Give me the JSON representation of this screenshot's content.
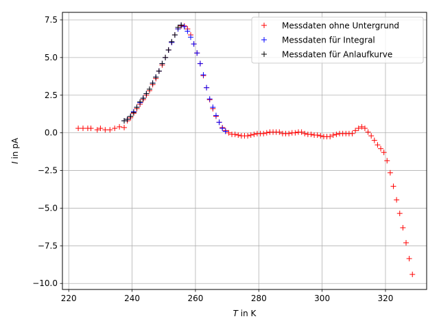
{
  "chart_data": {
    "type": "scatter",
    "title": "",
    "xlabel_var": "T",
    "xlabel_unit": " in K",
    "ylabel_var": "I",
    "ylabel_unit": " in pA",
    "xlim": [
      218,
      333
    ],
    "ylim": [
      -10.4,
      8.0
    ],
    "x_ticks": [
      220,
      240,
      260,
      280,
      300,
      320
    ],
    "y_ticks": [
      -10.0,
      -7.5,
      -5.0,
      -2.5,
      0.0,
      2.5,
      5.0,
      7.5
    ],
    "x_tick_labels": [
      "220",
      "240",
      "260",
      "280",
      "300",
      "320"
    ],
    "y_tick_labels": [
      "−10.0",
      "−7.5",
      "−5.0",
      "−2.5",
      "0.0",
      "2.5",
      "5.0",
      "7.5"
    ],
    "grid": true,
    "legend_position": "upper right",
    "marker": "+",
    "series": [
      {
        "name": "Messdaten ohne Untergrund",
        "color": "#ff0000",
        "x": [
          223,
          224.5,
          226,
          227,
          229,
          230,
          231.5,
          233,
          234.5,
          236,
          237.5,
          238.5,
          239.5,
          240.5,
          241.5,
          242.5,
          243.5,
          244.5,
          245.5,
          246.5,
          247.5,
          248.5,
          249.5,
          250.5,
          251.5,
          252.5,
          253.5,
          254.5,
          255.5,
          256.5,
          257.5,
          258.5,
          259.5,
          260.5,
          261.5,
          262.5,
          263.5,
          264.5,
          265.5,
          266.5,
          267.5,
          268.5,
          269.5,
          270.5,
          271.5,
          272.5,
          273.5,
          274.5,
          275.5,
          276.5,
          277.5,
          278.5,
          279.5,
          280.5,
          281.5,
          282.5,
          283.5,
          284.5,
          285.5,
          286.5,
          287.5,
          288.5,
          289.5,
          290.5,
          291.5,
          292.5,
          293.5,
          294.5,
          295.5,
          296.5,
          297.5,
          298.5,
          299.5,
          300.5,
          301.5,
          302.5,
          303.5,
          304.5,
          305.5,
          306.5,
          307.5,
          308.5,
          309.5,
          310.5,
          311.5,
          312.5,
          313.5,
          314.5,
          315.5,
          316.5,
          317.5,
          318.5,
          319.5,
          320.5,
          321.5,
          322.5,
          323.5,
          324.5,
          325.5,
          326.5,
          327.5,
          328.5
        ],
        "y": [
          0.3,
          0.3,
          0.3,
          0.3,
          0.2,
          0.3,
          0.2,
          0.2,
          0.3,
          0.4,
          0.35,
          0.8,
          1.0,
          1.3,
          1.6,
          1.9,
          2.2,
          2.5,
          2.8,
          3.2,
          3.6,
          4.1,
          4.5,
          5.0,
          5.5,
          6.0,
          6.5,
          6.9,
          7.1,
          7.1,
          6.9,
          6.5,
          5.9,
          5.3,
          4.6,
          3.8,
          3.0,
          2.2,
          1.6,
          1.1,
          0.7,
          0.35,
          0.15,
          0.0,
          -0.1,
          -0.1,
          -0.15,
          -0.2,
          -0.2,
          -0.2,
          -0.15,
          -0.1,
          -0.05,
          -0.05,
          -0.05,
          0.0,
          0.05,
          0.05,
          0.05,
          0.05,
          -0.05,
          -0.05,
          -0.05,
          0.0,
          0.0,
          0.05,
          0.05,
          -0.05,
          -0.1,
          -0.1,
          -0.15,
          -0.15,
          -0.2,
          -0.25,
          -0.25,
          -0.25,
          -0.15,
          -0.1,
          -0.05,
          -0.05,
          -0.05,
          -0.05,
          -0.05,
          0.15,
          0.3,
          0.4,
          0.3,
          0.05,
          -0.2,
          -0.5,
          -0.8,
          -1.05,
          -1.3,
          -1.85,
          -2.65,
          -3.55,
          -4.45,
          -5.35,
          -6.3,
          -7.3,
          -8.35,
          -9.4
        ]
      },
      {
        "name": "Messdaten für Integral",
        "color": "#0000ff",
        "x": [
          237.5,
          238.5,
          239.5,
          240.5,
          241.5,
          242.5,
          243.5,
          244.5,
          245.5,
          246.5,
          247.5,
          248.5,
          249.5,
          250.5,
          251.5,
          252.5,
          253.5,
          254.5,
          255.5,
          256.5,
          257.5,
          258.5,
          259.5,
          260.5,
          261.5,
          262.5,
          263.5,
          264.5,
          265.5,
          266.5,
          267.5,
          268.5,
          269.5
        ],
        "y": [
          0.8,
          0.9,
          1.1,
          1.4,
          1.7,
          2.0,
          2.3,
          2.6,
          2.9,
          3.3,
          3.7,
          4.1,
          4.6,
          5.0,
          5.5,
          6.0,
          6.5,
          6.9,
          7.15,
          7.05,
          6.75,
          6.35,
          5.9,
          5.3,
          4.6,
          3.85,
          3.0,
          2.25,
          1.7,
          1.15,
          0.7,
          0.3,
          0.1
        ]
      },
      {
        "name": "Messdaten für Anlaufkurve",
        "color": "#000000",
        "x": [
          237.5,
          238.5,
          239.5,
          240.5,
          241.5,
          242.5,
          243.5,
          244.5,
          245.5,
          246.5,
          247.5,
          248.5,
          249.5,
          250.5,
          251.5,
          252.5,
          253.5,
          254.5,
          255.5
        ],
        "y": [
          0.8,
          0.9,
          1.1,
          1.35,
          1.7,
          2.05,
          2.3,
          2.6,
          2.9,
          3.3,
          3.7,
          4.1,
          4.6,
          5.0,
          5.5,
          6.05,
          6.5,
          7.0,
          7.15
        ]
      }
    ]
  }
}
